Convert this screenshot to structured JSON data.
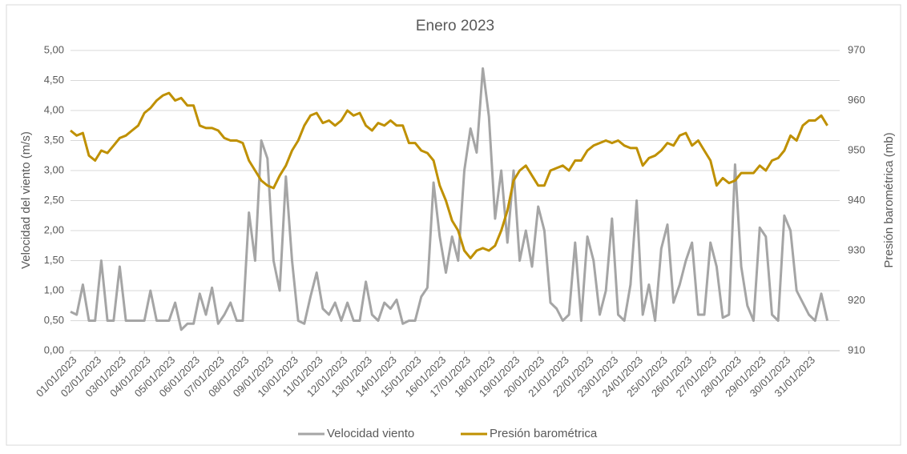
{
  "chart_data": {
    "type": "line",
    "title": "Enero 2023",
    "y_label": "Velocidad del viento (m/s)",
    "y2_label": "Presión barométrica (mb)",
    "categories": [
      "01/01/2023",
      null,
      null,
      null,
      "02/01/2023",
      null,
      null,
      null,
      "03/01/2023",
      null,
      null,
      null,
      "04/01/2023",
      null,
      null,
      null,
      "05/01/2023",
      null,
      null,
      null,
      "06/01/2023",
      null,
      null,
      null,
      "07/01/2023",
      null,
      null,
      null,
      "08/01/2023",
      null,
      null,
      null,
      "09/01/2023",
      null,
      null,
      null,
      "10/01/2023",
      null,
      null,
      null,
      "11/01/2023",
      null,
      null,
      null,
      "12/01/2023",
      null,
      null,
      null,
      "13/01/2023",
      null,
      null,
      null,
      "14/01/2023",
      null,
      null,
      null,
      "15/01/2023",
      null,
      null,
      null,
      "16/01/2023",
      null,
      null,
      null,
      "17/01/2023",
      null,
      null,
      null,
      "18/01/2023",
      null,
      null,
      null,
      "19/01/2023",
      null,
      null,
      null,
      "20/01/2023",
      null,
      null,
      null,
      "21/01/2023",
      null,
      null,
      null,
      "22/01/2023",
      null,
      null,
      null,
      "23/01/2023",
      null,
      null,
      null,
      "24/01/2023",
      null,
      null,
      null,
      "25/01/2023",
      null,
      null,
      null,
      "26/01/2023",
      null,
      null,
      null,
      "27/01/2023",
      null,
      null,
      null,
      "28/01/2023",
      null,
      null,
      null,
      "29/01/2023",
      null,
      null,
      null,
      "30/01/2023",
      null,
      null,
      null,
      "31/01/2023",
      null,
      null,
      null
    ],
    "series": [
      {
        "name": "Velocidad viento",
        "color": "#a5a5a5",
        "values": [
          0.65,
          0.6,
          1.1,
          0.5,
          0.5,
          1.5,
          0.5,
          0.5,
          1.4,
          0.5,
          0.5,
          0.5,
          0.5,
          1.0,
          0.5,
          0.5,
          0.5,
          0.8,
          0.35,
          0.45,
          0.45,
          0.95,
          0.6,
          1.05,
          0.45,
          0.6,
          0.8,
          0.5,
          0.5,
          2.3,
          1.5,
          3.5,
          3.2,
          1.5,
          1.0,
          2.9,
          1.5,
          0.5,
          0.45,
          0.9,
          1.3,
          0.7,
          0.6,
          0.8,
          0.5,
          0.8,
          0.5,
          0.5,
          1.15,
          0.6,
          0.5,
          0.8,
          0.7,
          0.85,
          0.45,
          0.5,
          0.5,
          0.9,
          1.05,
          2.8,
          1.9,
          1.3,
          1.9,
          1.5,
          3.0,
          3.7,
          3.3,
          4.7,
          3.9,
          2.2,
          3.0,
          1.8,
          3.0,
          1.5,
          2.0,
          1.4,
          2.4,
          2.0,
          0.8,
          0.7,
          0.5,
          0.6,
          1.8,
          0.5,
          1.9,
          1.5,
          0.6,
          1.0,
          2.2,
          0.6,
          0.5,
          1.1,
          2.5,
          0.6,
          1.1,
          0.5,
          1.7,
          2.1,
          0.8,
          1.1,
          1.5,
          1.8,
          0.6,
          0.6,
          1.8,
          1.4,
          0.55,
          0.6,
          3.1,
          1.4,
          0.75,
          0.5,
          2.05,
          1.9,
          0.6,
          0.5,
          2.25,
          2.0,
          1.0,
          0.8,
          0.6,
          0.5,
          0.95,
          0.5
        ]
      },
      {
        "name": "Presión barométrica",
        "color": "#bf9000",
        "axis": "y2",
        "values": [
          954,
          953,
          953.5,
          949,
          948,
          950,
          949.5,
          951,
          952.5,
          953,
          954,
          955,
          957.5,
          958.5,
          960,
          961,
          961.5,
          960,
          960.5,
          959,
          959,
          955,
          954.5,
          954.5,
          954,
          952.5,
          952,
          952,
          951.5,
          948,
          946,
          944,
          943,
          942.5,
          945,
          947,
          950,
          952,
          955,
          957,
          957.5,
          955.5,
          956,
          955,
          956,
          958,
          957,
          957.5,
          955,
          954,
          955.5,
          955,
          956,
          955,
          955,
          951.5,
          951.5,
          950,
          949.5,
          948,
          943,
          940,
          936,
          934,
          930,
          928.5,
          930,
          930.5,
          930,
          931,
          934,
          938,
          944,
          946,
          947,
          945,
          943,
          943,
          946,
          946.5,
          947,
          946,
          948,
          948,
          950,
          951,
          951.5,
          952,
          951.5,
          952,
          951,
          950.5,
          950.5,
          947,
          948.5,
          949,
          950,
          951.5,
          951,
          953,
          953.5,
          951,
          952,
          950,
          948,
          943,
          944.5,
          943.5,
          944,
          945.5,
          945.5,
          945.5,
          947,
          946,
          948,
          948.5,
          950,
          953,
          952,
          955,
          956,
          956,
          957,
          955
        ]
      }
    ],
    "ylim": [
      0,
      5
    ],
    "yticks": [
      {
        "value": 0,
        "label": "0,00"
      },
      {
        "value": 0.5,
        "label": "0,50"
      },
      {
        "value": 1,
        "label": "1,00"
      },
      {
        "value": 1.5,
        "label": "1,50"
      },
      {
        "value": 2,
        "label": "2,00"
      },
      {
        "value": 2.5,
        "label": "2,50"
      },
      {
        "value": 3,
        "label": "3,00"
      },
      {
        "value": 3.5,
        "label": "3,50"
      },
      {
        "value": 4,
        "label": "4,00"
      },
      {
        "value": 4.5,
        "label": "4,50"
      },
      {
        "value": 5,
        "label": "5,00"
      }
    ],
    "y2lim": [
      910,
      970
    ],
    "y2ticks": [
      910,
      920,
      930,
      940,
      950,
      960,
      970
    ],
    "grid": true,
    "legend": "bottom"
  }
}
